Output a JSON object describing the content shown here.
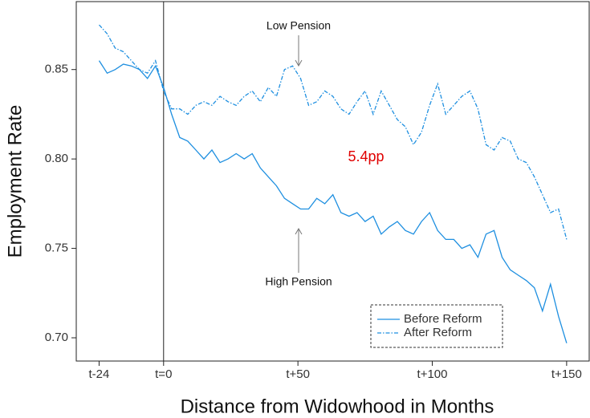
{
  "chart_data": {
    "type": "line",
    "xlabel": "Distance from Widowhood in Months",
    "ylabel": "Employment Rate",
    "x": [
      -24,
      -21,
      -18,
      -15,
      -12,
      -9,
      -6,
      -3,
      0,
      3,
      6,
      9,
      12,
      15,
      18,
      21,
      24,
      27,
      30,
      33,
      36,
      39,
      42,
      45,
      48,
      51,
      54,
      57,
      60,
      63,
      66,
      69,
      72,
      75,
      78,
      81,
      84,
      87,
      90,
      93,
      96,
      99,
      102,
      105,
      108,
      111,
      114,
      117,
      120,
      123,
      126,
      129,
      132,
      135,
      138,
      141,
      144,
      147,
      150
    ],
    "series": [
      {
        "name": "Before Reform",
        "color": "#1e8fe0",
        "dash": "solid",
        "values": [
          0.855,
          0.848,
          0.85,
          0.853,
          0.852,
          0.85,
          0.845,
          0.852,
          0.84,
          0.825,
          0.812,
          0.81,
          0.805,
          0.8,
          0.805,
          0.798,
          0.8,
          0.803,
          0.8,
          0.803,
          0.795,
          0.79,
          0.785,
          0.778,
          0.775,
          0.772,
          0.772,
          0.778,
          0.775,
          0.78,
          0.77,
          0.768,
          0.77,
          0.765,
          0.768,
          0.758,
          0.762,
          0.765,
          0.76,
          0.758,
          0.765,
          0.77,
          0.76,
          0.755,
          0.755,
          0.75,
          0.752,
          0.745,
          0.758,
          0.76,
          0.745,
          0.738,
          0.735,
          0.732,
          0.728,
          0.715,
          0.73,
          0.712,
          0.697
        ]
      },
      {
        "name": "After Reform",
        "color": "#1e8fe0",
        "dash": "dashdot",
        "values": [
          0.875,
          0.87,
          0.862,
          0.86,
          0.855,
          0.85,
          0.848,
          0.855,
          0.838,
          0.828,
          0.828,
          0.825,
          0.83,
          0.832,
          0.83,
          0.835,
          0.832,
          0.83,
          0.835,
          0.838,
          0.832,
          0.84,
          0.835,
          0.85,
          0.852,
          0.845,
          0.83,
          0.832,
          0.838,
          0.835,
          0.828,
          0.825,
          0.832,
          0.838,
          0.825,
          0.838,
          0.83,
          0.822,
          0.818,
          0.808,
          0.815,
          0.83,
          0.842,
          0.825,
          0.83,
          0.835,
          0.838,
          0.828,
          0.808,
          0.805,
          0.812,
          0.81,
          0.8,
          0.798,
          0.79,
          0.78,
          0.77,
          0.772,
          0.755
        ]
      }
    ],
    "xlim": [
      -32.5,
      158.4
    ],
    "ylim": [
      0.687,
      0.888
    ],
    "xticks": [
      {
        "value": -24,
        "label": "t-24"
      },
      {
        "value": 0,
        "label": "t=0"
      },
      {
        "value": 50,
        "label": "t+50"
      },
      {
        "value": 100,
        "label": "t+100"
      },
      {
        "value": 150,
        "label": "t+150"
      }
    ],
    "yticks": [
      {
        "value": 0.7,
        "label": "0.70"
      },
      0.75,
      {
        "value": 0.8,
        "label": "0.80"
      },
      0.85
    ],
    "vline": 0,
    "annotations": [
      "Low Pension",
      "High Pension",
      "5.4pp"
    ],
    "legend": "lower right"
  }
}
